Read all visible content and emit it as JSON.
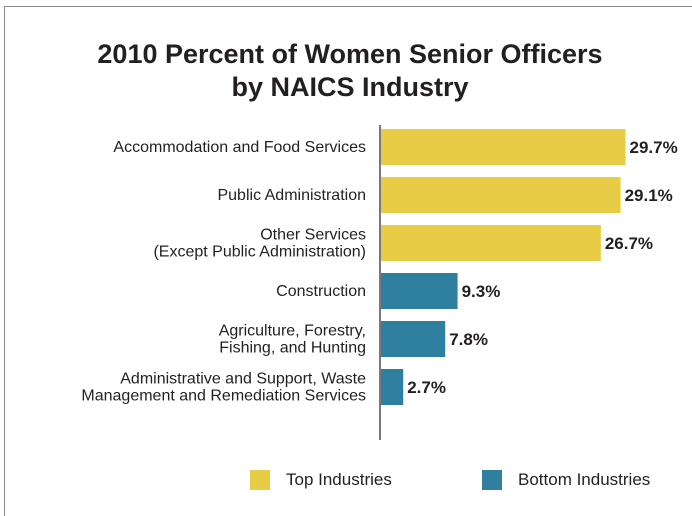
{
  "chart_data": {
    "type": "bar",
    "orientation": "horizontal",
    "title_lines": [
      "2010 Percent of Women Senior Officers",
      "by NAICS Industry"
    ],
    "categories": [
      [
        "Accommodation and Food Services"
      ],
      [
        "Public Administration"
      ],
      [
        "Other Services",
        "(Except Public Administration)"
      ],
      [
        "Construction"
      ],
      [
        "Agriculture, Forestry,",
        "Fishing, and Hunting"
      ],
      [
        "Administrative and Support, Waste",
        "Management and Remediation Services"
      ]
    ],
    "values": [
      29.7,
      29.1,
      26.7,
      9.3,
      7.8,
      2.7
    ],
    "value_labels": [
      "29.7%",
      "29.1%",
      "26.7%",
      "9.3%",
      "7.8%",
      "2.7%"
    ],
    "groups": [
      "top",
      "top",
      "top",
      "bottom",
      "bottom",
      "bottom"
    ],
    "xlim": [
      0,
      30
    ],
    "grid": false,
    "legend_position": "bottom",
    "legend": [
      {
        "key": "top",
        "label": "Top Industries",
        "color": "#e8cc45"
      },
      {
        "key": "bottom",
        "label": "Bottom Industries",
        "color": "#2e7fa0"
      }
    ]
  }
}
